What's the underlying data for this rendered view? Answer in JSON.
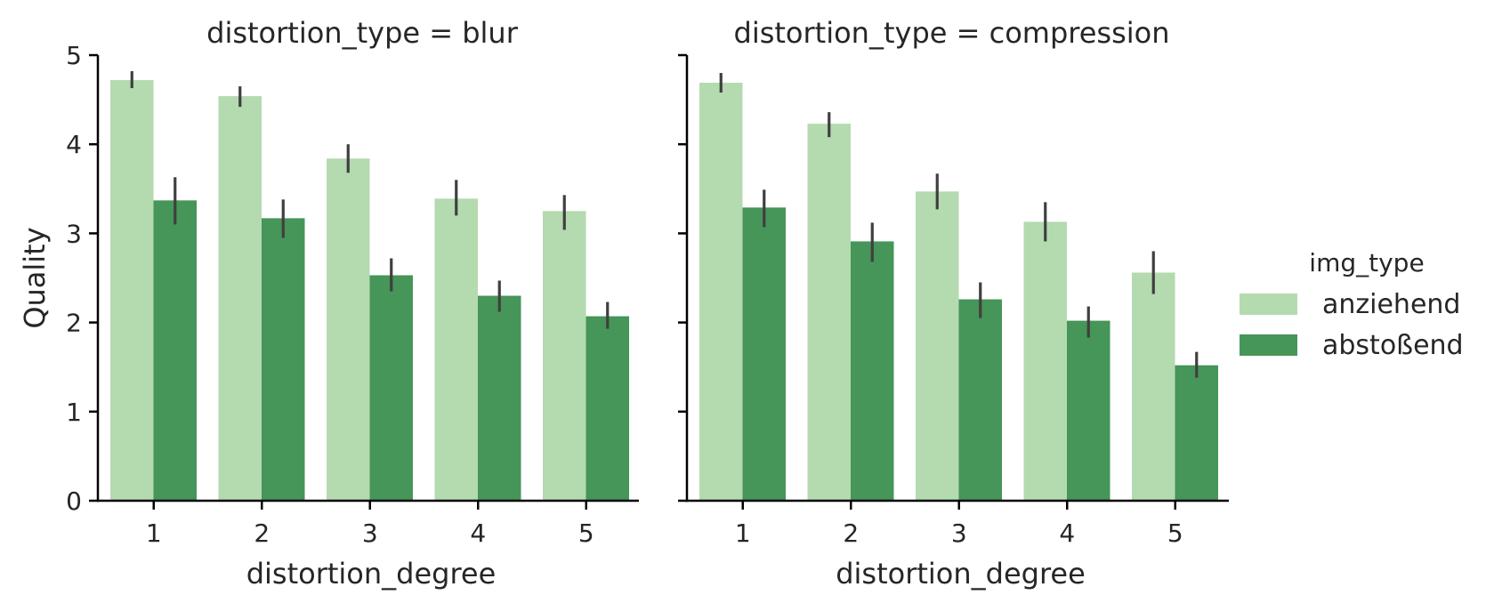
{
  "colors": {
    "anziehend": "#b4dab0",
    "abstoßend": "#469559",
    "axis": "#000000",
    "errorbar": "#3f3f3f"
  },
  "chart_data": {
    "type": "bar",
    "ylabel": "Quality",
    "xlabel": "distortion_degree",
    "ylim": [
      0,
      5
    ],
    "yticks": [
      0,
      1,
      2,
      3,
      4,
      5
    ],
    "categories": [
      "1",
      "2",
      "3",
      "4",
      "5"
    ],
    "legend": {
      "title": "img_type",
      "position": "right",
      "entries": [
        "anziehend",
        "abstoßend"
      ]
    },
    "facets": [
      {
        "title": "distortion_type = blur",
        "series": [
          {
            "name": "anziehend",
            "values": [
              4.72,
              4.54,
              3.84,
              3.39,
              3.25
            ],
            "ci_low": [
              4.63,
              4.42,
              3.68,
              3.2,
              3.04
            ],
            "ci_high": [
              4.82,
              4.65,
              4.0,
              3.6,
              3.43
            ]
          },
          {
            "name": "abstoßend",
            "values": [
              3.37,
              3.17,
              2.53,
              2.3,
              2.07
            ],
            "ci_low": [
              3.1,
              2.95,
              2.35,
              2.12,
              1.93
            ],
            "ci_high": [
              3.63,
              3.38,
              2.72,
              2.47,
              2.23
            ]
          }
        ]
      },
      {
        "title": "distortion_type = compression",
        "series": [
          {
            "name": "anziehend",
            "values": [
              4.69,
              4.23,
              3.47,
              3.13,
              2.56
            ],
            "ci_low": [
              4.58,
              4.08,
              3.27,
              2.91,
              2.32
            ],
            "ci_high": [
              4.8,
              4.36,
              3.67,
              3.35,
              2.8
            ]
          },
          {
            "name": "abstoßend",
            "values": [
              3.29,
              2.91,
              2.26,
              2.02,
              1.52
            ],
            "ci_low": [
              3.07,
              2.68,
              2.05,
              1.83,
              1.38
            ],
            "ci_high": [
              3.49,
              3.12,
              2.45,
              2.18,
              1.67
            ]
          }
        ]
      }
    ]
  }
}
